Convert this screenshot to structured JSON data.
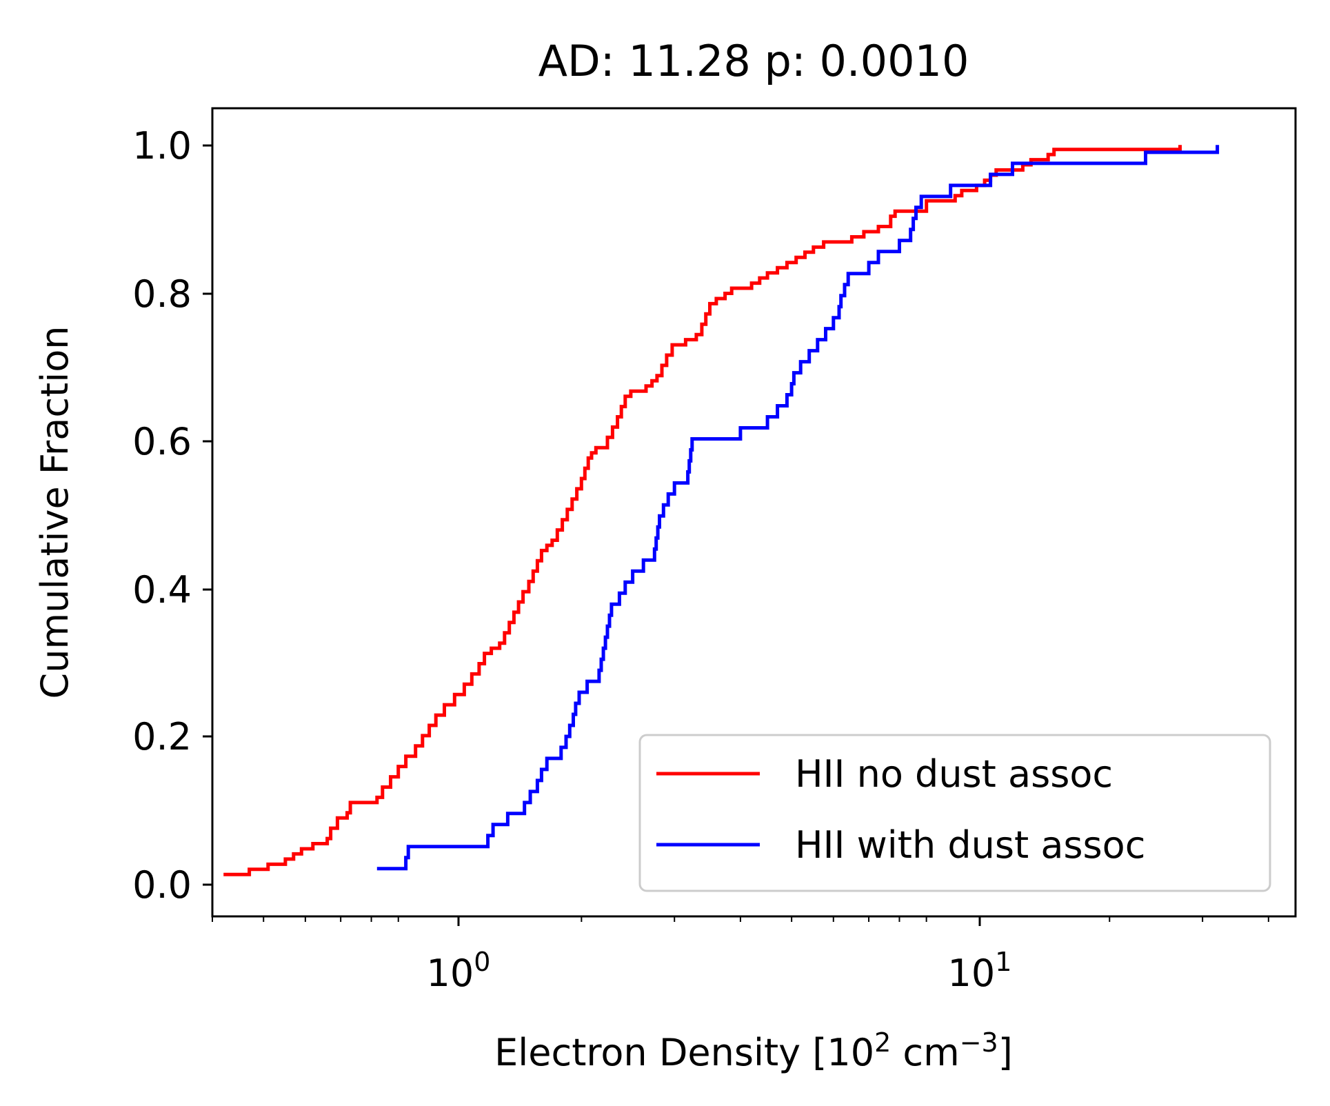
{
  "chart_data": {
    "type": "line",
    "title": "AD: 11.28 p: 0.0010",
    "xlabel": {
      "base": "Electron Density [10",
      "exp1": "2",
      "mid": " cm",
      "exp2": "−3",
      "end": "]"
    },
    "ylabel": "Cumulative Fraction",
    "xscale": "log",
    "xlim": [
      0.4,
      45
    ],
    "ylim": [
      -0.05,
      1.05
    ],
    "xticks": [
      {
        "value": 1,
        "base": "10",
        "exp": "0"
      },
      {
        "value": 10,
        "base": "10",
        "exp": "1"
      }
    ],
    "yticks": [
      {
        "value": 0.0,
        "label": "0.0"
      },
      {
        "value": 0.2,
        "label": "0.2"
      },
      {
        "value": 0.4,
        "label": "0.4"
      },
      {
        "value": 0.6,
        "label": "0.6"
      },
      {
        "value": 0.8,
        "label": "0.8"
      },
      {
        "value": 1.0,
        "label": "1.0"
      }
    ],
    "grid": false,
    "legend_position": "lower right",
    "series": [
      {
        "name": "HII no dust assoc",
        "color": "#ff0000",
        "drawstyle": "steps",
        "points": [
          [
            0.42,
            0.007
          ],
          [
            0.47,
            0.014
          ],
          [
            0.51,
            0.021
          ],
          [
            0.55,
            0.028
          ],
          [
            0.57,
            0.035
          ],
          [
            0.59,
            0.042
          ],
          [
            0.62,
            0.049
          ],
          [
            0.66,
            0.056
          ],
          [
            0.67,
            0.07
          ],
          [
            0.69,
            0.084
          ],
          [
            0.72,
            0.091
          ],
          [
            0.73,
            0.105
          ],
          [
            0.82,
            0.112
          ],
          [
            0.84,
            0.126
          ],
          [
            0.87,
            0.14
          ],
          [
            0.9,
            0.154
          ],
          [
            0.93,
            0.168
          ],
          [
            0.97,
            0.182
          ],
          [
            1.0,
            0.196
          ],
          [
            1.03,
            0.21
          ],
          [
            1.06,
            0.224
          ],
          [
            1.1,
            0.238
          ],
          [
            1.15,
            0.252
          ],
          [
            1.2,
            0.266
          ],
          [
            1.24,
            0.28
          ],
          [
            1.28,
            0.294
          ],
          [
            1.31,
            0.308
          ],
          [
            1.35,
            0.315
          ],
          [
            1.4,
            0.322
          ],
          [
            1.43,
            0.336
          ],
          [
            1.46,
            0.35
          ],
          [
            1.49,
            0.364
          ],
          [
            1.52,
            0.378
          ],
          [
            1.55,
            0.392
          ],
          [
            1.59,
            0.406
          ],
          [
            1.62,
            0.42
          ],
          [
            1.65,
            0.434
          ],
          [
            1.68,
            0.448
          ],
          [
            1.72,
            0.455
          ],
          [
            1.76,
            0.462
          ],
          [
            1.8,
            0.476
          ],
          [
            1.84,
            0.49
          ],
          [
            1.88,
            0.504
          ],
          [
            1.92,
            0.518
          ],
          [
            1.96,
            0.532
          ],
          [
            2.0,
            0.546
          ],
          [
            2.03,
            0.56
          ],
          [
            2.06,
            0.574
          ],
          [
            2.09,
            0.581
          ],
          [
            2.13,
            0.588
          ],
          [
            2.24,
            0.602
          ],
          [
            2.29,
            0.616
          ],
          [
            2.34,
            0.63
          ],
          [
            2.38,
            0.644
          ],
          [
            2.42,
            0.658
          ],
          [
            2.48,
            0.665
          ],
          [
            2.65,
            0.672
          ],
          [
            2.72,
            0.679
          ],
          [
            2.78,
            0.686
          ],
          [
            2.84,
            0.7
          ],
          [
            2.9,
            0.714
          ],
          [
            2.97,
            0.728
          ],
          [
            3.15,
            0.735
          ],
          [
            3.3,
            0.742
          ],
          [
            3.38,
            0.756
          ],
          [
            3.44,
            0.77
          ],
          [
            3.5,
            0.784
          ],
          [
            3.6,
            0.791
          ],
          [
            3.74,
            0.798
          ],
          [
            3.85,
            0.805
          ],
          [
            4.2,
            0.812
          ],
          [
            4.35,
            0.819
          ],
          [
            4.5,
            0.826
          ],
          [
            4.7,
            0.833
          ],
          [
            4.9,
            0.84
          ],
          [
            5.1,
            0.847
          ],
          [
            5.3,
            0.854
          ],
          [
            5.5,
            0.861
          ],
          [
            5.75,
            0.868
          ],
          [
            6.5,
            0.875
          ],
          [
            6.85,
            0.882
          ],
          [
            7.3,
            0.889
          ],
          [
            7.7,
            0.903
          ],
          [
            7.85,
            0.91
          ],
          [
            9.0,
            0.924
          ],
          [
            10.2,
            0.931
          ],
          [
            10.5,
            0.938
          ],
          [
            11.2,
            0.945
          ],
          [
            11.6,
            0.952
          ],
          [
            11.9,
            0.959
          ],
          [
            12.2,
            0.966
          ],
          [
            13.7,
            0.973
          ],
          [
            14.2,
            0.98
          ],
          [
            15.3,
            0.987
          ],
          [
            15.7,
            0.994
          ],
          [
            27.2,
            1.0
          ]
        ]
      },
      {
        "name": "HII with dust assoc",
        "color": "#0000ff",
        "drawstyle": "steps",
        "points": [
          [
            0.82,
            0.015
          ],
          [
            0.93,
            0.03
          ],
          [
            0.94,
            0.045
          ],
          [
            1.33,
            0.06
          ],
          [
            1.36,
            0.075
          ],
          [
            1.45,
            0.09
          ],
          [
            1.56,
            0.105
          ],
          [
            1.6,
            0.12
          ],
          [
            1.65,
            0.135
          ],
          [
            1.68,
            0.15
          ],
          [
            1.72,
            0.165
          ],
          [
            1.83,
            0.18
          ],
          [
            1.87,
            0.195
          ],
          [
            1.9,
            0.21
          ],
          [
            1.93,
            0.225
          ],
          [
            1.95,
            0.24
          ],
          [
            1.98,
            0.255
          ],
          [
            2.05,
            0.27
          ],
          [
            2.16,
            0.285
          ],
          [
            2.18,
            0.3
          ],
          [
            2.2,
            0.315
          ],
          [
            2.22,
            0.33
          ],
          [
            2.24,
            0.345
          ],
          [
            2.26,
            0.36
          ],
          [
            2.28,
            0.375
          ],
          [
            2.36,
            0.39
          ],
          [
            2.42,
            0.405
          ],
          [
            2.5,
            0.42
          ],
          [
            2.62,
            0.435
          ],
          [
            2.75,
            0.45
          ],
          [
            2.77,
            0.465
          ],
          [
            2.79,
            0.48
          ],
          [
            2.81,
            0.495
          ],
          [
            2.86,
            0.51
          ],
          [
            2.92,
            0.525
          ],
          [
            3.0,
            0.54
          ],
          [
            3.18,
            0.555
          ],
          [
            3.2,
            0.57
          ],
          [
            3.22,
            0.585
          ],
          [
            3.24,
            0.6
          ],
          [
            4.0,
            0.615
          ],
          [
            4.5,
            0.63
          ],
          [
            4.7,
            0.645
          ],
          [
            4.9,
            0.66
          ],
          [
            5.0,
            0.675
          ],
          [
            5.05,
            0.69
          ],
          [
            5.2,
            0.705
          ],
          [
            5.4,
            0.72
          ],
          [
            5.6,
            0.735
          ],
          [
            5.8,
            0.75
          ],
          [
            6.0,
            0.765
          ],
          [
            6.15,
            0.78
          ],
          [
            6.2,
            0.795
          ],
          [
            6.3,
            0.81
          ],
          [
            6.4,
            0.825
          ],
          [
            7.0,
            0.84
          ],
          [
            7.3,
            0.855
          ],
          [
            8.0,
            0.87
          ],
          [
            8.4,
            0.885
          ],
          [
            8.5,
            0.9
          ],
          [
            8.6,
            0.915
          ],
          [
            8.8,
            0.93
          ],
          [
            10.0,
            0.945
          ],
          [
            11.9,
            0.96
          ],
          [
            13.1,
            0.975
          ],
          [
            23.4,
            0.99
          ],
          [
            32.0,
            1.0
          ]
        ]
      }
    ]
  }
}
